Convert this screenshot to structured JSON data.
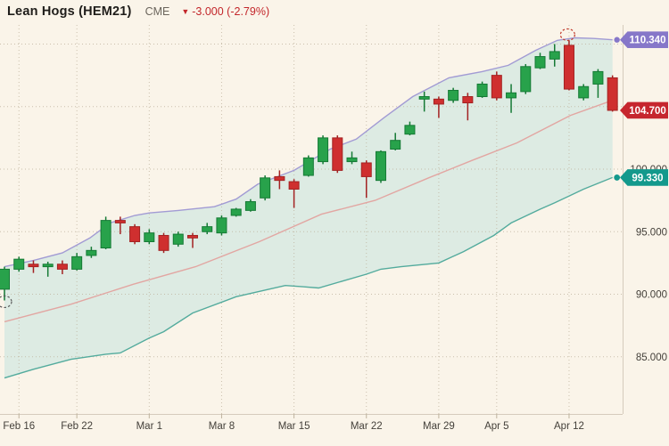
{
  "header": {
    "title": "Lean Hogs (HEM21)",
    "exchange": "CME",
    "direction_icon": "▼",
    "change_text": "-3.000 (-2.79%)"
  },
  "colors": {
    "background": "#faf4e9",
    "up": "#28a24b",
    "up_border": "#157a35",
    "down": "#cf2f2f",
    "down_border": "#a32222",
    "band_fill": "#d9eae2",
    "upper_band_line": "#a29bd4",
    "lower_band_line": "#53ab9d",
    "middle_band_line": "#e2a6a2",
    "grid": "#bfb39e",
    "axis_line": "#d5cbbc",
    "axis_text": "#44403a",
    "change_text": "#c3272b",
    "tag_upper_band": "#8677c9",
    "tag_last_price": "#c6262e",
    "tag_lower_band": "#13998c",
    "tag_text": "#ffffff",
    "annotation_high": "#c0392b",
    "annotation_low": "#5a5a5a"
  },
  "chart_data": {
    "type": "candlestick",
    "title": "Lean Hogs (HEM21)",
    "exchange": "CME",
    "x_axis": {
      "tick_labels": [
        "Feb 16",
        "Feb 22",
        "Mar 1",
        "Mar 8",
        "Mar 15",
        "Mar 22",
        "Mar 29",
        "Apr 5",
        "Apr 12"
      ],
      "tick_candle_indices": [
        1,
        5,
        10,
        15,
        20,
        25,
        30,
        34,
        39
      ]
    },
    "y_axis": {
      "gridline_values": [
        110,
        105,
        100,
        95,
        90,
        85
      ],
      "tick_labels": [
        {
          "value": 100,
          "label": "100.000"
        },
        {
          "value": 95,
          "label": "95.000"
        },
        {
          "value": 90,
          "label": "90.000"
        },
        {
          "value": 85,
          "label": "85.000"
        }
      ],
      "range": [
        83,
        111.5
      ]
    },
    "price_tags": [
      {
        "kind": "upper_band",
        "label": "110.340",
        "value": 110.34
      },
      {
        "kind": "last_price",
        "label": "104.700",
        "value": 104.7
      },
      {
        "kind": "lower_band",
        "label": "99.330",
        "value": 99.33
      }
    ],
    "candles": [
      {
        "o": 90.4,
        "h": 92.2,
        "l": 89.5,
        "c": 92.0
      },
      {
        "o": 92.0,
        "h": 93.0,
        "l": 91.8,
        "c": 92.8
      },
      {
        "o": 92.4,
        "h": 92.7,
        "l": 91.7,
        "c": 92.2
      },
      {
        "o": 92.2,
        "h": 92.6,
        "l": 91.4,
        "c": 92.4
      },
      {
        "o": 92.4,
        "h": 92.7,
        "l": 91.6,
        "c": 92.0
      },
      {
        "o": 92.0,
        "h": 93.3,
        "l": 91.9,
        "c": 93.0
      },
      {
        "o": 93.1,
        "h": 93.8,
        "l": 92.9,
        "c": 93.5
      },
      {
        "o": 93.7,
        "h": 96.2,
        "l": 93.6,
        "c": 95.9
      },
      {
        "o": 95.9,
        "h": 96.2,
        "l": 94.8,
        "c": 95.7
      },
      {
        "o": 95.4,
        "h": 95.6,
        "l": 94.0,
        "c": 94.2
      },
      {
        "o": 94.2,
        "h": 95.2,
        "l": 94.0,
        "c": 94.9
      },
      {
        "o": 94.7,
        "h": 94.9,
        "l": 93.3,
        "c": 93.5
      },
      {
        "o": 94.0,
        "h": 95.0,
        "l": 93.8,
        "c": 94.8
      },
      {
        "o": 94.7,
        "h": 94.9,
        "l": 93.7,
        "c": 94.5
      },
      {
        "o": 95.0,
        "h": 95.7,
        "l": 94.8,
        "c": 95.4
      },
      {
        "o": 94.9,
        "h": 96.3,
        "l": 94.7,
        "c": 96.1
      },
      {
        "o": 96.3,
        "h": 96.9,
        "l": 96.2,
        "c": 96.8
      },
      {
        "o": 96.7,
        "h": 97.6,
        "l": 96.6,
        "c": 97.4
      },
      {
        "o": 97.7,
        "h": 99.5,
        "l": 97.5,
        "c": 99.3
      },
      {
        "o": 99.4,
        "h": 99.9,
        "l": 98.4,
        "c": 99.1
      },
      {
        "o": 99.0,
        "h": 99.2,
        "l": 96.9,
        "c": 98.4
      },
      {
        "o": 99.5,
        "h": 101.1,
        "l": 99.4,
        "c": 100.9
      },
      {
        "o": 100.6,
        "h": 102.7,
        "l": 100.4,
        "c": 102.5
      },
      {
        "o": 102.5,
        "h": 102.7,
        "l": 99.7,
        "c": 99.9
      },
      {
        "o": 100.6,
        "h": 101.4,
        "l": 100.4,
        "c": 100.9
      },
      {
        "o": 100.5,
        "h": 100.7,
        "l": 97.7,
        "c": 99.4
      },
      {
        "o": 99.1,
        "h": 101.5,
        "l": 98.9,
        "c": 101.4
      },
      {
        "o": 101.6,
        "h": 102.9,
        "l": 101.5,
        "c": 102.3
      },
      {
        "o": 102.8,
        "h": 103.8,
        "l": 102.7,
        "c": 103.5
      },
      {
        "o": 105.6,
        "h": 106.2,
        "l": 104.6,
        "c": 105.8
      },
      {
        "o": 105.6,
        "h": 105.8,
        "l": 104.1,
        "c": 105.2
      },
      {
        "o": 105.5,
        "h": 106.5,
        "l": 105.3,
        "c": 106.3
      },
      {
        "o": 105.8,
        "h": 106.1,
        "l": 103.9,
        "c": 105.3
      },
      {
        "o": 105.8,
        "h": 107.0,
        "l": 105.7,
        "c": 106.8
      },
      {
        "o": 107.5,
        "h": 107.8,
        "l": 105.5,
        "c": 105.7
      },
      {
        "o": 105.7,
        "h": 106.8,
        "l": 104.5,
        "c": 106.1
      },
      {
        "o": 106.2,
        "h": 108.4,
        "l": 106.0,
        "c": 108.2
      },
      {
        "o": 108.1,
        "h": 109.3,
        "l": 108.0,
        "c": 109.0
      },
      {
        "o": 108.8,
        "h": 110.0,
        "l": 108.2,
        "c": 109.4
      },
      {
        "o": 109.9,
        "h": 110.3,
        "l": 106.3,
        "c": 106.4
      },
      {
        "o": 105.7,
        "h": 106.8,
        "l": 105.5,
        "c": 106.6
      },
      {
        "o": 106.8,
        "h": 108.0,
        "l": 105.7,
        "c": 107.8
      },
      {
        "o": 107.3,
        "h": 107.5,
        "l": 104.6,
        "c": 104.7
      }
    ],
    "overlays": {
      "upper_band": {
        "name": "bollinger-upper",
        "points": [
          [
            0,
            92.2
          ],
          [
            2,
            92.7
          ],
          [
            4,
            93.3
          ],
          [
            5.9,
            94.5
          ],
          [
            7.3,
            95.7
          ],
          [
            9,
            96.3
          ],
          [
            10,
            96.5
          ],
          [
            12,
            96.7
          ],
          [
            14.5,
            97.0
          ],
          [
            16,
            97.6
          ],
          [
            17.5,
            98.8
          ],
          [
            20,
            99.9
          ],
          [
            22.5,
            101.6
          ],
          [
            24.3,
            102.4
          ],
          [
            26.2,
            104.1
          ],
          [
            28.2,
            105.8
          ],
          [
            30.7,
            107.3
          ],
          [
            33,
            107.8
          ],
          [
            34.8,
            108.3
          ],
          [
            36.7,
            109.5
          ],
          [
            38.2,
            110.3
          ],
          [
            39.4,
            110.5
          ],
          [
            40.7,
            110.45
          ],
          [
            42,
            110.34
          ]
        ]
      },
      "middle_band": {
        "name": "bollinger-middle",
        "points": [
          [
            0,
            87.8
          ],
          [
            4.6,
            89.2
          ],
          [
            8.9,
            90.8
          ],
          [
            13.2,
            92.2
          ],
          [
            17.6,
            94.2
          ],
          [
            21.9,
            96.4
          ],
          [
            25.6,
            97.5
          ],
          [
            29.3,
            99.3
          ],
          [
            32.3,
            100.7
          ],
          [
            35.4,
            102.1
          ],
          [
            39.1,
            104.3
          ],
          [
            42,
            105.5
          ]
        ]
      },
      "lower_band": {
        "name": "bollinger-lower",
        "points": [
          [
            0,
            83.3
          ],
          [
            2,
            84.0
          ],
          [
            4.6,
            84.8
          ],
          [
            7,
            85.2
          ],
          [
            8,
            85.3
          ],
          [
            10,
            86.5
          ],
          [
            11,
            87.0
          ],
          [
            13,
            88.5
          ],
          [
            16,
            89.8
          ],
          [
            19.4,
            90.7
          ],
          [
            20.6,
            90.6
          ],
          [
            21.7,
            90.5
          ],
          [
            25,
            91.6
          ],
          [
            26,
            92.0
          ],
          [
            27.4,
            92.2
          ],
          [
            30,
            92.5
          ],
          [
            31.7,
            93.4
          ],
          [
            33.8,
            94.7
          ],
          [
            35,
            95.7
          ],
          [
            37,
            96.8
          ],
          [
            38,
            97.3
          ],
          [
            40,
            98.4
          ],
          [
            42,
            99.33
          ]
        ]
      }
    },
    "annotations": [
      {
        "shape": "dashed-circle",
        "role": "low_marker",
        "index": 0,
        "price": 89.4
      },
      {
        "shape": "dashed-circle",
        "role": "high_marker",
        "index": 38.9,
        "price": 110.75
      }
    ]
  }
}
